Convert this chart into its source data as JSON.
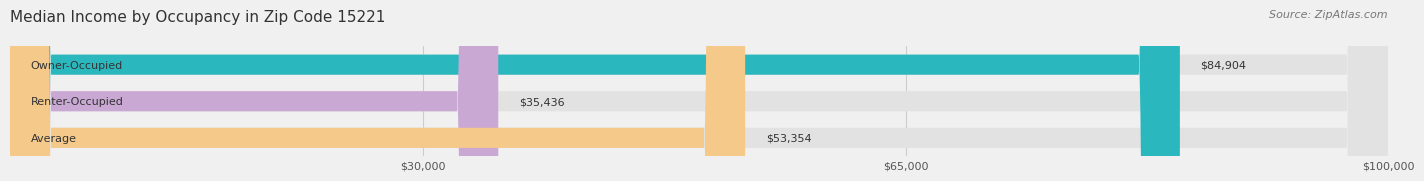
{
  "title": "Median Income by Occupancy in Zip Code 15221",
  "source": "Source: ZipAtlas.com",
  "categories": [
    "Owner-Occupied",
    "Renter-Occupied",
    "Average"
  ],
  "values": [
    84904,
    35436,
    53354
  ],
  "bar_colors": [
    "#2ab8be",
    "#c9a8d4",
    "#f5c98a"
  ],
  "bar_labels": [
    "$84,904",
    "$35,436",
    "$53,354"
  ],
  "xlim": [
    0,
    100000
  ],
  "xticks": [
    30000,
    65000,
    100000
  ],
  "xticklabels": [
    "$30,000",
    "$65,000",
    "$100,000"
  ],
  "background_color": "#f0f0f0",
  "bar_bg_color": "#e2e2e2",
  "title_fontsize": 11,
  "source_fontsize": 8,
  "label_fontsize": 8,
  "tick_fontsize": 8
}
